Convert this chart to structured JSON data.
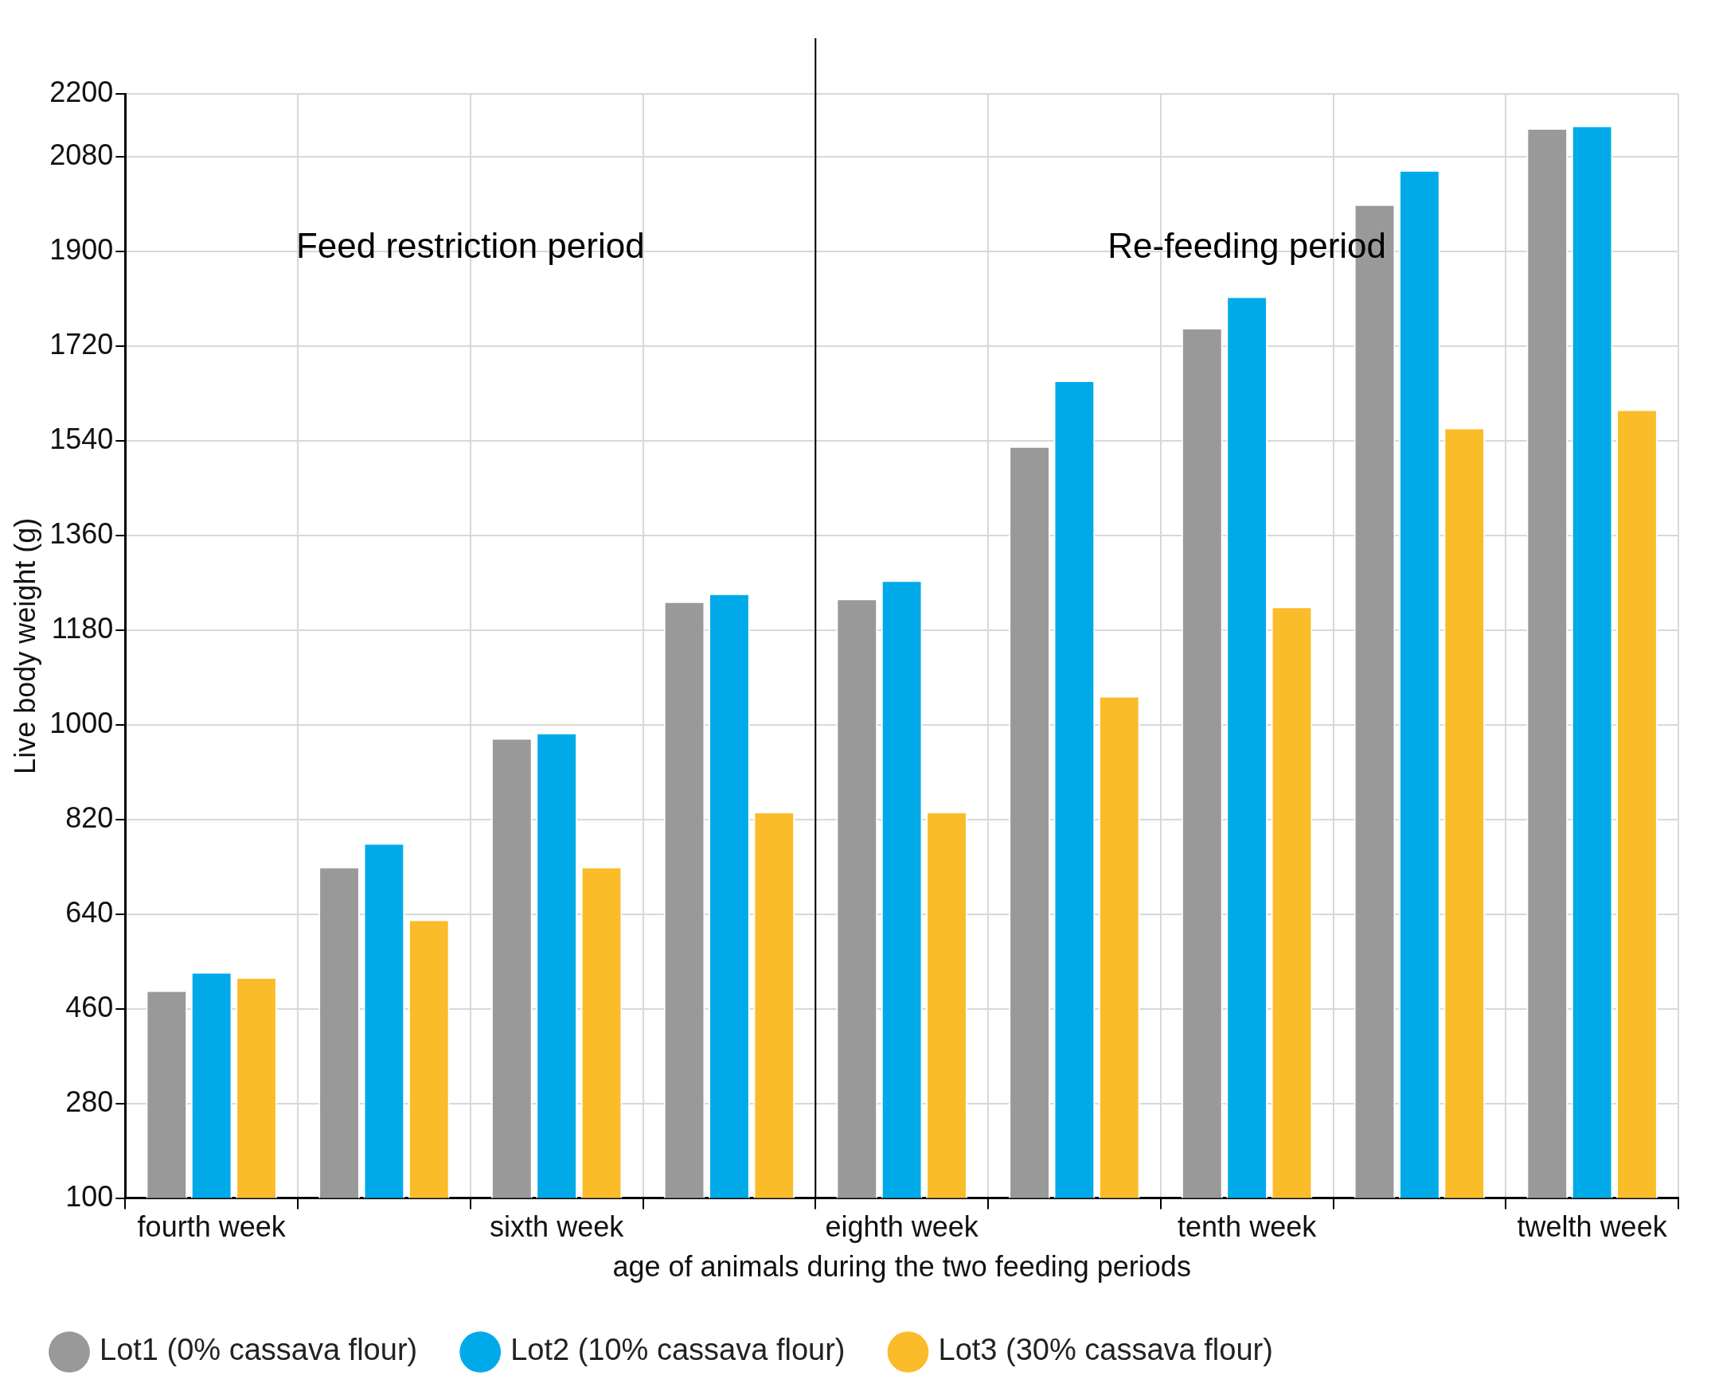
{
  "chart_data": {
    "type": "bar",
    "xlabel": "age of animals during the two feeding periods",
    "ylabel": "Live body weight (g)",
    "categories": [
      "fourth week",
      null,
      "sixth week",
      null,
      "eighth week",
      null,
      "tenth week",
      null,
      "twelth week"
    ],
    "series": [
      {
        "name": "Lot1 (0% cassava flour)",
        "color": "#999999",
        "values": [
          495,
          730,
          975,
          1235,
          1240,
          1530,
          1755,
          1990,
          2135
        ]
      },
      {
        "name": "Lot2 (10% cassava flour)",
        "color": "#00aae8",
        "values": [
          530,
          775,
          985,
          1250,
          1275,
          1655,
          1815,
          2055,
          2140
        ]
      },
      {
        "name": "Lot3 (30% cassava flour)",
        "color": "#fbbc2a",
        "values": [
          520,
          630,
          730,
          835,
          835,
          1055,
          1225,
          1565,
          1600
        ]
      }
    ],
    "ylim": [
      100,
      2200
    ],
    "yticks": [
      100,
      280,
      460,
      640,
      820,
      1000,
      1180,
      1360,
      1540,
      1720,
      1900,
      2080,
      2200
    ],
    "grid": true,
    "legend": "bottom",
    "ref_lines": [
      {
        "axis": "x",
        "value": "eighth week",
        "color": "#000000"
      }
    ],
    "annotations": [
      "Feed restriction period",
      "Re-feeding period"
    ]
  }
}
